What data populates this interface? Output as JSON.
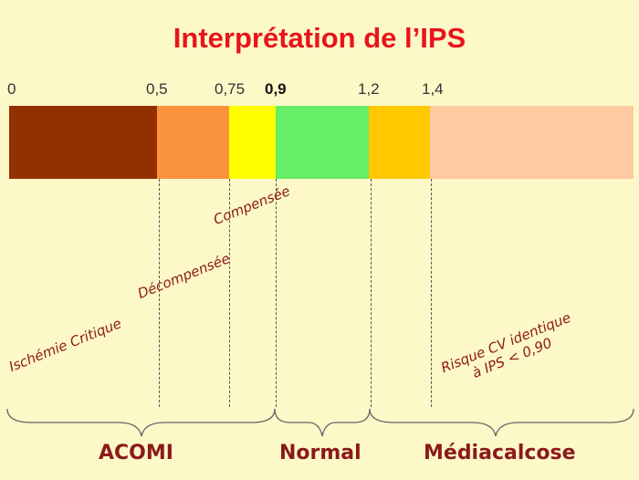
{
  "title": "Interprétation de l’IPS",
  "ticks": [
    "0",
    "0,5",
    "0,75",
    "0,9",
    "1,2",
    "1,4"
  ],
  "segment_colors": [
    "#933000",
    "#fb923c",
    "#ffff00",
    "#66ee66",
    "#ffc800",
    "#ffcaa0"
  ],
  "labels": {
    "compensee": "Compensée",
    "decompensee": "Décompensée",
    "ischemie": "Ischémie Critique",
    "risque_line1": "Risque CV identique",
    "risque_line2": "à IPS < 0,90"
  },
  "categories": {
    "acomi": "ACOMI",
    "normal": "Normal",
    "mediacalcose": "Médiacalcose"
  }
}
